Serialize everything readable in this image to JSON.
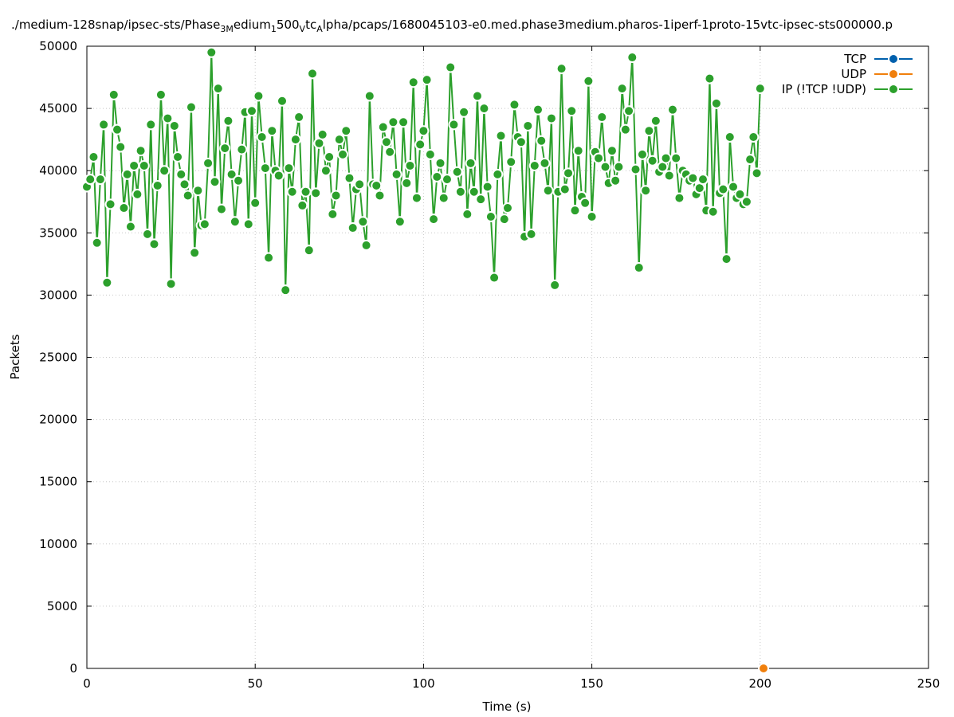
{
  "chart_data": {
    "type": "line",
    "title": [
      "./medium-128snap/ipsec-sts/Phase",
      "3M",
      "edium",
      "1",
      "500",
      "V",
      "tc",
      "A",
      "lpha/pcaps/1680045103-e0.med.phase3medium.pharos-1iperf-1proto-15vtc-ipsec-sts000000.p"
    ],
    "x_label": "Time (s)",
    "y_label": "Packets",
    "xlim": [
      0,
      250
    ],
    "xticks": [
      0,
      50,
      100,
      150,
      200,
      250
    ],
    "ylim": [
      0,
      50000
    ],
    "yticks": [
      0,
      5000,
      10000,
      15000,
      20000,
      25000,
      30000,
      35000,
      40000,
      45000,
      50000
    ],
    "grid": true,
    "legend": "top-right",
    "series": [
      {
        "name": "TCP",
        "color": "#0060ad",
        "x": [],
        "values": []
      },
      {
        "name": "UDP",
        "color": "#f07f0c",
        "x": [
          201
        ],
        "values": [
          0
        ]
      },
      {
        "name": "IP (!TCP  !UDP)",
        "color": "#2ca02c",
        "x": [
          0,
          1,
          2,
          3,
          4,
          5,
          6,
          7,
          8,
          9,
          10,
          11,
          12,
          13,
          14,
          15,
          16,
          17,
          18,
          19,
          20,
          21,
          22,
          23,
          24,
          25,
          26,
          27,
          28,
          29,
          30,
          31,
          32,
          33,
          34,
          35,
          36,
          37,
          38,
          39,
          40,
          41,
          42,
          43,
          44,
          45,
          46,
          47,
          48,
          49,
          50,
          51,
          52,
          53,
          54,
          55,
          56,
          57,
          58,
          59,
          60,
          61,
          62,
          63,
          64,
          65,
          66,
          67,
          68,
          69,
          70,
          71,
          72,
          73,
          74,
          75,
          76,
          77,
          78,
          79,
          80,
          81,
          82,
          83,
          84,
          85,
          86,
          87,
          88,
          89,
          90,
          91,
          92,
          93,
          94,
          95,
          96,
          97,
          98,
          99,
          100,
          101,
          102,
          103,
          104,
          105,
          106,
          107,
          108,
          109,
          110,
          111,
          112,
          113,
          114,
          115,
          116,
          117,
          118,
          119,
          120,
          121,
          122,
          123,
          124,
          125,
          126,
          127,
          128,
          129,
          130,
          131,
          132,
          133,
          134,
          135,
          136,
          137,
          138,
          139,
          140,
          141,
          142,
          143,
          144,
          145,
          146,
          147,
          148,
          149,
          150,
          151,
          152,
          153,
          154,
          155,
          156,
          157,
          158,
          159,
          160,
          161,
          162,
          163,
          164,
          165,
          166,
          167,
          168,
          169,
          170,
          171,
          172,
          173,
          174,
          175,
          176,
          177,
          178,
          179,
          180,
          181,
          182,
          183,
          184,
          185,
          186,
          187,
          188,
          189,
          190,
          191,
          192,
          193,
          194,
          195,
          196,
          197,
          198,
          199,
          200
        ],
        "values": [
          38700,
          39300,
          41100,
          34200,
          39300,
          43700,
          31000,
          37300,
          46100,
          43300,
          41900,
          37000,
          39700,
          35500,
          40400,
          38100,
          41600,
          40400,
          34900,
          43700,
          34100,
          38800,
          46100,
          40000,
          44200,
          30900,
          43600,
          41100,
          39700,
          38900,
          38000,
          45100,
          33400,
          38400,
          35600,
          35700,
          40600,
          49500,
          39100,
          46600,
          36900,
          41800,
          44000,
          39700,
          35900,
          39200,
          41700,
          44700,
          35700,
          44800,
          37400,
          46000,
          42700,
          40200,
          33000,
          43200,
          40000,
          39600,
          45600,
          30400,
          40200,
          38300,
          42500,
          44300,
          37200,
          38300,
          33600,
          47800,
          38200,
          42200,
          42900,
          40000,
          41100,
          36500,
          38000,
          42500,
          41300,
          43200,
          39400,
          35400,
          38500,
          38900,
          35900,
          34000,
          46000,
          38900,
          38800,
          38000,
          43500,
          42300,
          41500,
          43900,
          39700,
          35900,
          43900,
          39000,
          40400,
          47100,
          37800,
          42100,
          43200,
          47300,
          41300,
          36100,
          39500,
          40600,
          37800,
          39300,
          48300,
          43700,
          39900,
          38300,
          44700,
          36500,
          40600,
          38300,
          46000,
          37700,
          45000,
          38700,
          36300,
          31400,
          39700,
          42800,
          36100,
          37000,
          40700,
          45300,
          42700,
          42300,
          34700,
          43600,
          34900,
          40400,
          44900,
          42400,
          40600,
          38400,
          44200,
          30800,
          38300,
          48200,
          38500,
          39800,
          44800,
          36800,
          41600,
          37900,
          37400,
          47200,
          36300,
          41500,
          41000,
          44300,
          40300,
          39000,
          41600,
          39200,
          40300,
          46600,
          43300,
          44800,
          49100,
          40100,
          32200,
          41300,
          38400,
          43200,
          40800,
          44000,
          39900,
          40300,
          41000,
          39600,
          44900,
          41000,
          37800,
          40000,
          39700,
          39200,
          39400,
          38100,
          38600,
          39300,
          36800,
          47400,
          36700,
          45400,
          38200,
          38500,
          32900,
          42700,
          38700,
          37800,
          38100,
          37300,
          37500,
          40900,
          42700,
          39800,
          46600
        ]
      }
    ]
  }
}
